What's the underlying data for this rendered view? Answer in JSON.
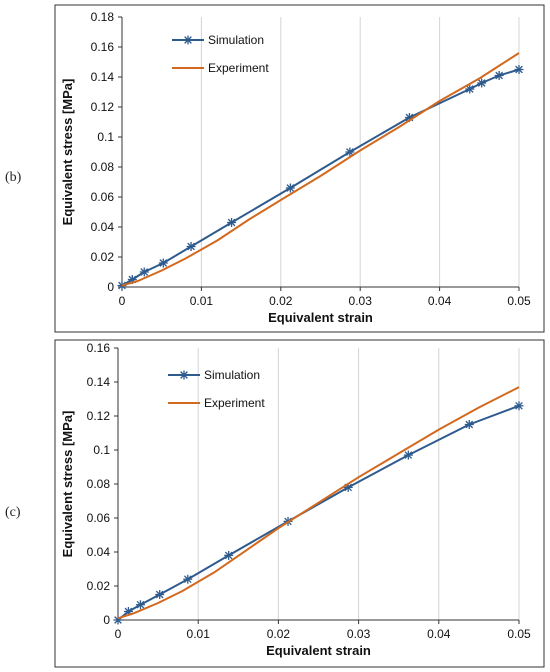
{
  "panels": [
    {
      "label": "(b)",
      "chart_data": {
        "type": "line",
        "xlabel": "Equivalent strain",
        "ylabel": "Equivalent stress [MPa]",
        "xlim": [
          0,
          0.05
        ],
        "ylim": [
          0,
          0.18
        ],
        "xticks": [
          0,
          0.01,
          0.02,
          0.03,
          0.04,
          0.05
        ],
        "yticks": [
          0,
          0.02,
          0.04,
          0.06,
          0.08,
          0.1,
          0.12,
          0.14,
          0.16,
          0.18
        ],
        "xtick_labels": [
          "0",
          "0.01",
          "0.02",
          "0.03",
          "0.04",
          "0.05"
        ],
        "ytick_labels": [
          "0",
          "0.02",
          "0.04",
          "0.06",
          "0.08",
          "0.1",
          "0.12",
          "0.14",
          "0.16",
          "0.18"
        ],
        "grid": "vertical",
        "legend_position": "top-left",
        "series": [
          {
            "name": "Simulation",
            "color": "#2e5b8e",
            "marker": "star",
            "x": [
              0,
              0.0013,
              0.0028,
              0.0052,
              0.0087,
              0.0138,
              0.0212,
              0.0287,
              0.0362,
              0.0438,
              0.0453,
              0.0475,
              0.05
            ],
            "y": [
              0.001,
              0.005,
              0.01,
              0.016,
              0.027,
              0.043,
              0.066,
              0.09,
              0.113,
              0.132,
              0.136,
              0.141,
              0.145
            ]
          },
          {
            "name": "Experiment",
            "color": "#d2691e",
            "marker": "none",
            "x": [
              0,
              0.002,
              0.005,
              0.008,
              0.012,
              0.016,
              0.02,
              0.025,
              0.03,
              0.035,
              0.04,
              0.045,
              0.05
            ],
            "y": [
              0.001,
              0.004,
              0.011,
              0.019,
              0.031,
              0.045,
              0.058,
              0.074,
              0.091,
              0.107,
              0.124,
              0.139,
              0.156
            ]
          }
        ]
      }
    },
    {
      "label": "(c)",
      "chart_data": {
        "type": "line",
        "xlabel": "Equivalent strain",
        "ylabel": "Equivalent stress [MPa]",
        "xlim": [
          0,
          0.05
        ],
        "ylim": [
          0,
          0.16
        ],
        "xticks": [
          0,
          0.01,
          0.02,
          0.03,
          0.04,
          0.05
        ],
        "yticks": [
          0,
          0.02,
          0.04,
          0.06,
          0.08,
          0.1,
          0.12,
          0.14,
          0.16
        ],
        "xtick_labels": [
          "0",
          "0.01",
          "0.02",
          "0.03",
          "0.04",
          "0.05"
        ],
        "ytick_labels": [
          "0",
          "0.02",
          "0.04",
          "0.06",
          "0.08",
          "0.1",
          "0.12",
          "0.14",
          "0.16"
        ],
        "grid": "vertical",
        "legend_position": "top-left",
        "series": [
          {
            "name": "Simulation",
            "color": "#2e5b8e",
            "marker": "star",
            "x": [
              0,
              0.0013,
              0.0028,
              0.0052,
              0.0087,
              0.0138,
              0.0212,
              0.0287,
              0.0362,
              0.0438,
              0.05
            ],
            "y": [
              0,
              0.005,
              0.009,
              0.015,
              0.024,
              0.038,
              0.058,
              0.078,
              0.097,
              0.115,
              0.126
            ]
          },
          {
            "name": "Experiment",
            "color": "#d2691e",
            "marker": "none",
            "x": [
              0,
              0.002,
              0.005,
              0.008,
              0.012,
              0.016,
              0.02,
              0.025,
              0.03,
              0.035,
              0.04,
              0.045,
              0.05
            ],
            "y": [
              0.001,
              0.004,
              0.01,
              0.017,
              0.028,
              0.041,
              0.054,
              0.069,
              0.084,
              0.098,
              0.112,
              0.125,
              0.137
            ]
          }
        ]
      }
    }
  ]
}
